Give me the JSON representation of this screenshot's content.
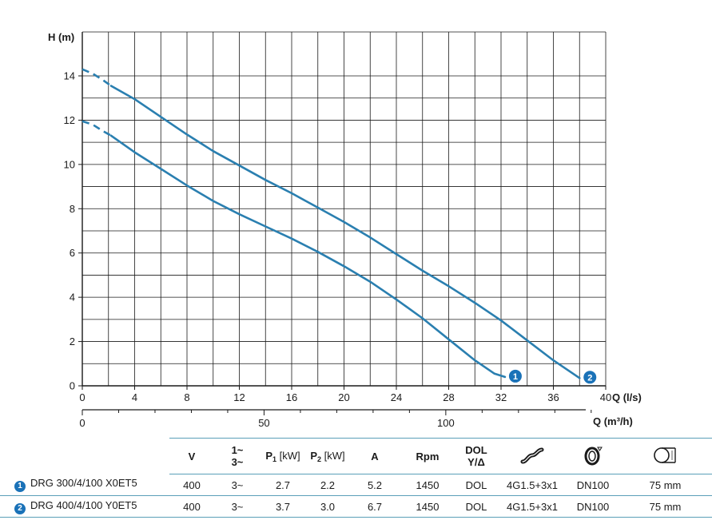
{
  "chart_data": {
    "type": "line",
    "ylabel": "H (m)",
    "xlabel": "Q (l/s)",
    "xlabel2": "Q (m³/h)",
    "xlim": [
      0,
      40
    ],
    "ylim": [
      0,
      14.5
    ],
    "xticks": [
      "0",
      "4",
      "8",
      "12",
      "16",
      "20",
      "24",
      "28",
      "32",
      "36",
      "40"
    ],
    "yticks": [
      "0",
      "2",
      "4",
      "6",
      "8",
      "10",
      "12",
      "14"
    ],
    "x2ticks": [
      "0",
      "50",
      "100"
    ],
    "grid": true,
    "series": [
      {
        "name": "1",
        "dashed_until": 2.2,
        "x": [
          0,
          0.8,
          1.6,
          2.2,
          4,
          6,
          8,
          10,
          12,
          14,
          16,
          18,
          20,
          22,
          24,
          26,
          28,
          30,
          31.5,
          32.3
        ],
        "y": [
          11.95,
          11.8,
          11.5,
          11.3,
          10.55,
          9.8,
          9.05,
          8.35,
          7.75,
          7.2,
          6.65,
          6.05,
          5.4,
          4.7,
          3.9,
          3.05,
          2.1,
          1.15,
          0.55,
          0.4
        ]
      },
      {
        "name": "2",
        "dashed_until": 2.2,
        "x": [
          0,
          0.8,
          1.6,
          2.2,
          4,
          6,
          8,
          10,
          12,
          14,
          16,
          18,
          20,
          22,
          24,
          26,
          28,
          30,
          32,
          34,
          36,
          38
        ],
        "y": [
          14.3,
          14.1,
          13.8,
          13.55,
          12.95,
          12.15,
          11.35,
          10.6,
          9.95,
          9.3,
          8.7,
          8.05,
          7.4,
          6.7,
          5.95,
          5.2,
          4.5,
          3.75,
          2.95,
          2.05,
          1.15,
          0.35
        ]
      }
    ]
  },
  "colors": {
    "curve": "#2a7fb0",
    "badge": "#1a72b8",
    "rule": "#5a9fb8"
  },
  "table": {
    "headers": {
      "v": "V",
      "phase_top": "1~",
      "phase_bottom": "3~",
      "p1": "P",
      "p1_sub": "1",
      "p1_unit": "[kW]",
      "p2": "P",
      "p2_sub": "2",
      "p2_unit": "[kW]",
      "a": "A",
      "rpm": "Rpm",
      "start_top": "DOL",
      "start_bottom": "Y/Δ",
      "cable_icon": "cable-icon",
      "flange_icon": "flange-icon",
      "outlet_icon": "outlet-pipe-icon"
    },
    "rows": [
      {
        "badge": "1",
        "model": "DRG 300/4/100 X0ET5",
        "v": "400",
        "phase": "3~",
        "p1": "2.7",
        "p2": "2.2",
        "a": "5.2",
        "rpm": "1450",
        "start": "DOL",
        "cable": "4G1.5+3x1",
        "flange": "DN100",
        "outlet": "75 mm"
      },
      {
        "badge": "2",
        "model": "DRG 400/4/100 Y0ET5",
        "v": "400",
        "phase": "3~",
        "p1": "3.7",
        "p2": "3.0",
        "a": "6.7",
        "rpm": "1450",
        "start": "DOL",
        "cable": "4G1.5+3x1",
        "flange": "DN100",
        "outlet": "75 mm"
      }
    ]
  }
}
